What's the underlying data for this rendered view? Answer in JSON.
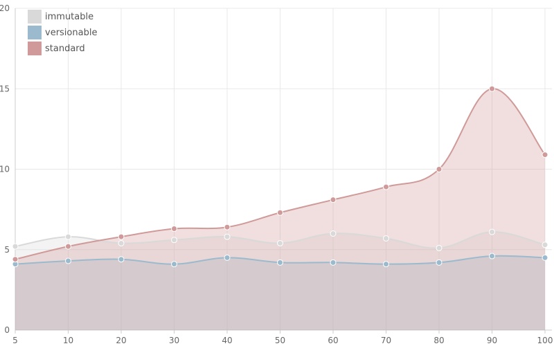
{
  "chart_data": {
    "type": "area",
    "x": [
      5,
      10,
      20,
      30,
      40,
      50,
      60,
      70,
      80,
      90,
      100
    ],
    "xticks": [
      "5",
      "10",
      "20",
      "30",
      "40",
      "50",
      "60",
      "70",
      "80",
      "90",
      "100"
    ],
    "yticks": [
      "0",
      "5",
      "10",
      "15",
      "20"
    ],
    "ylim": [
      0,
      20
    ],
    "grid": true,
    "legend_position": "top-left",
    "series": [
      {
        "name": "immutable",
        "color": "#d9d9d9",
        "values": [
          5.2,
          5.8,
          5.4,
          5.6,
          5.8,
          5.4,
          6.0,
          5.7,
          5.1,
          6.1,
          5.3
        ]
      },
      {
        "name": "versionable",
        "color": "#9bbacd",
        "values": [
          4.1,
          4.3,
          4.4,
          4.1,
          4.5,
          4.2,
          4.2,
          4.1,
          4.2,
          4.6,
          4.5
        ]
      },
      {
        "name": "standard",
        "color": "#cf9a99",
        "values": [
          4.4,
          5.2,
          5.8,
          6.3,
          6.4,
          7.3,
          8.1,
          8.9,
          10.0,
          15.0,
          10.9
        ]
      }
    ]
  }
}
